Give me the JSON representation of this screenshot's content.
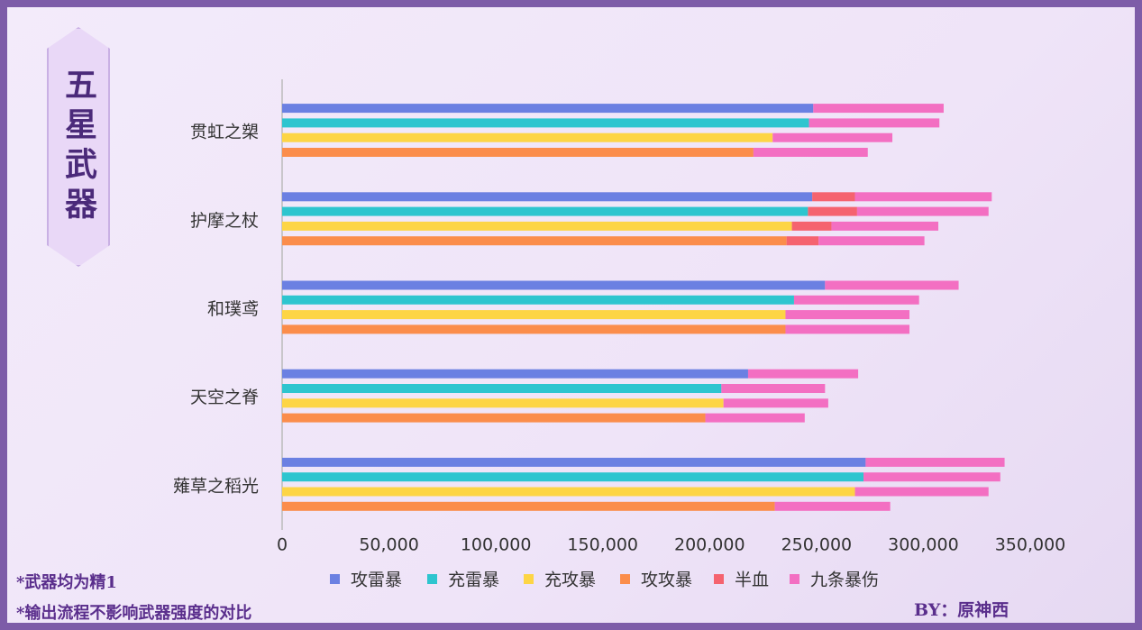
{
  "chart_data": {
    "type": "stacked-grouped-bar",
    "orientation": "horizontal",
    "title": "五星武器",
    "notes": [
      "*武器均为精1",
      "*输出流程不影响武器强度的对比"
    ],
    "credit": "BY：原神西",
    "categories": [
      "贯虹之槊",
      "护摩之杖",
      "和璞鸢",
      "天空之脊",
      "薙草之稻光"
    ],
    "series": [
      {
        "name": "攻雷暴",
        "color": "#6b80e2",
        "values": [
          248500,
          248000,
          254000,
          218000,
          273000
        ]
      },
      {
        "name": "充雷暴",
        "color": "#2ec5cf",
        "values": [
          246500,
          246000,
          239500,
          205500,
          272000
        ]
      },
      {
        "name": "充攻暴",
        "color": "#fdd545",
        "values": [
          229500,
          238500,
          235500,
          206500,
          268000
        ]
      },
      {
        "name": "攻攻暴",
        "color": "#fb8d4b",
        "values": [
          220500,
          236000,
          235500,
          198000,
          230500
        ]
      },
      {
        "name": "半血",
        "color": "#f5636f",
        "values": [
          [
            null,
            null,
            null,
            null
          ],
          [
            20000,
            23000,
            18500,
            15000
          ],
          [
            null,
            null,
            null,
            null
          ],
          [
            null,
            null,
            null,
            null
          ],
          [
            null,
            null,
            null,
            null
          ]
        ]
      },
      {
        "name": "九条暴伤",
        "color": "#f36fc2",
        "values": [
          [
            61000,
            61000,
            56000,
            53500
          ],
          [
            64000,
            61500,
            50000,
            49500
          ],
          [
            62500,
            58500,
            58000,
            58000
          ],
          [
            51500,
            48500,
            49000,
            46500
          ],
          [
            65000,
            64000,
            62500,
            54000
          ]
        ]
      }
    ],
    "xlim": [
      0,
      350000
    ],
    "xticks": [
      0,
      {
        "value": 50000,
        "label": "50,000"
      },
      {
        "value": 100000,
        "label": "100,000"
      },
      {
        "value": 150000,
        "label": "150,000"
      },
      {
        "value": 200000,
        "label": "200,000"
      },
      {
        "value": 250000,
        "label": "250,000"
      },
      {
        "value": 300000,
        "label": "300,000"
      },
      {
        "value": 350000,
        "label": "350,000"
      }
    ],
    "grid": false,
    "legend": "bottom"
  }
}
